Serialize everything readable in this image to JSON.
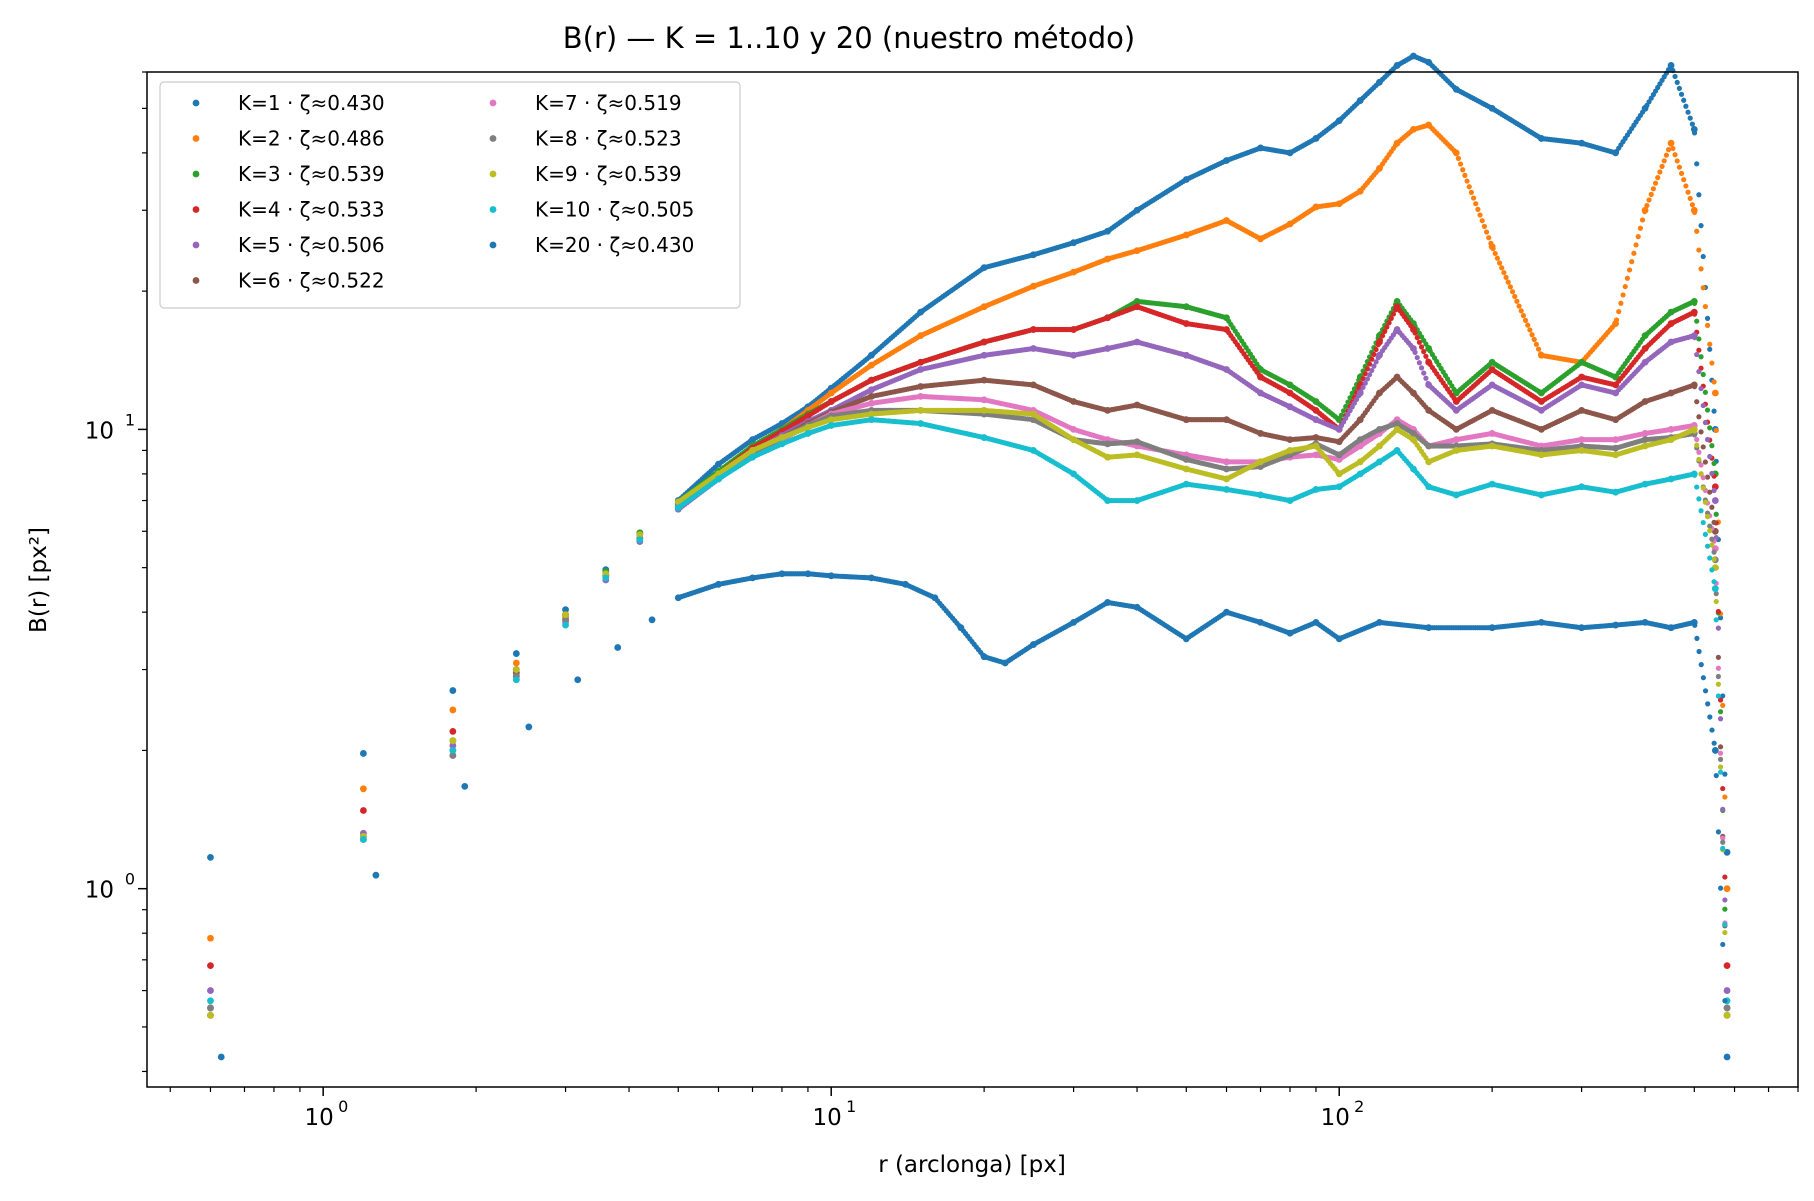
{
  "chart_data": {
    "type": "scatter",
    "title": "B(r) — K = 1..10 y 20 (nuestro método)",
    "xlabel": "r (arclonga) [px]",
    "ylabel": "B(r) [px²]",
    "xscale": "log",
    "yscale": "log",
    "xlim": [
      0.45,
      800
    ],
    "ylim": [
      0.37,
      60
    ],
    "xtick_labels": [
      {
        "value": 1,
        "base": "10",
        "exp": "0"
      },
      {
        "value": 10,
        "base": "10",
        "exp": "1"
      },
      {
        "value": 100,
        "base": "10",
        "exp": "2"
      }
    ],
    "ytick_labels": [
      {
        "value": 1,
        "base": "10",
        "exp": "0"
      },
      {
        "value": 10,
        "base": "10",
        "exp": "1"
      }
    ],
    "grid": false,
    "legend": {
      "placement": "top-left",
      "columns": 2
    },
    "series": [
      {
        "name": "K=1 · ζ≈0.430",
        "color": "#1f77b4",
        "x": [
          0.6,
          1.2,
          1.8,
          2.4,
          3,
          3.6,
          4.2,
          5,
          6,
          7,
          8,
          9,
          10,
          12,
          15,
          20,
          25,
          30,
          35,
          40,
          50,
          60,
          70,
          80,
          90,
          100,
          110,
          120,
          130,
          140,
          150,
          170,
          200,
          250,
          300,
          350,
          400,
          450,
          500,
          550,
          580
        ],
        "values": [
          1.17,
          1.97,
          2.7,
          3.25,
          4.05,
          4.95,
          5.95,
          7.0,
          8.4,
          9.5,
          10.3,
          11.2,
          12.3,
          14.5,
          18,
          22.5,
          24,
          25.5,
          27,
          30,
          35,
          38.5,
          41,
          40,
          43,
          47,
          52,
          57,
          62,
          65,
          63,
          55,
          50,
          43,
          42,
          40,
          50,
          62,
          45,
          10,
          1.2
        ]
      },
      {
        "name": "K=2 · ζ≈0.486",
        "color": "#ff7f0e",
        "x": [
          0.6,
          1.2,
          1.8,
          2.4,
          3,
          3.6,
          4.2,
          5,
          6,
          7,
          8,
          9,
          10,
          12,
          15,
          20,
          25,
          30,
          35,
          40,
          50,
          60,
          70,
          80,
          90,
          100,
          110,
          120,
          130,
          140,
          150,
          170,
          200,
          250,
          300,
          350,
          400,
          450,
          500,
          550,
          580
        ],
        "values": [
          0.78,
          1.65,
          2.45,
          3.1,
          3.9,
          4.8,
          5.7,
          6.8,
          8.0,
          9.2,
          10.0,
          11.0,
          12.0,
          13.8,
          16,
          18.5,
          20.5,
          22,
          23.5,
          24.5,
          26.5,
          28.5,
          26,
          28,
          30.5,
          31,
          33,
          37,
          42,
          45,
          46,
          40,
          25,
          14.5,
          14,
          17,
          30,
          42,
          30,
          12,
          1.0
        ]
      },
      {
        "name": "K=3 · ζ≈0.539",
        "color": "#2ca02c",
        "x": [
          0.6,
          1.2,
          1.8,
          2.4,
          3,
          3.6,
          4.2,
          5,
          6,
          7,
          8,
          9,
          10,
          12,
          15,
          20,
          25,
          30,
          35,
          40,
          50,
          60,
          70,
          80,
          90,
          100,
          110,
          120,
          130,
          140,
          150,
          170,
          200,
          250,
          300,
          350,
          400,
          450,
          500,
          550,
          580
        ],
        "values": [
          0.55,
          1.3,
          2.1,
          2.95,
          3.95,
          4.9,
          5.95,
          6.95,
          8.1,
          9.2,
          10.0,
          10.8,
          11.5,
          12.8,
          14,
          15.5,
          16.5,
          16.5,
          17.5,
          19,
          18.5,
          17.5,
          13.5,
          12.5,
          11.5,
          10.5,
          13,
          16,
          19,
          17,
          15,
          12,
          14,
          12,
          14,
          13,
          16,
          18,
          19,
          8,
          0.55
        ]
      },
      {
        "name": "K=4 · ζ≈0.533",
        "color": "#d62728",
        "x": [
          0.6,
          1.2,
          1.8,
          2.4,
          3,
          3.6,
          4.2,
          5,
          6,
          7,
          8,
          9,
          10,
          12,
          15,
          20,
          25,
          30,
          35,
          40,
          50,
          60,
          70,
          80,
          90,
          100,
          110,
          120,
          130,
          140,
          150,
          170,
          200,
          250,
          300,
          350,
          400,
          450,
          500,
          550,
          580
        ],
        "values": [
          0.68,
          1.48,
          2.2,
          3.0,
          3.85,
          4.8,
          5.8,
          6.85,
          8.0,
          9.1,
          9.9,
          10.7,
          11.5,
          12.8,
          14,
          15.5,
          16.5,
          16.5,
          17.5,
          18.5,
          17,
          16.5,
          13,
          12,
          11,
          10,
          12.5,
          15.5,
          18.5,
          16.5,
          14,
          11.5,
          13.5,
          11.5,
          13,
          12.5,
          15,
          17,
          18,
          7.5,
          0.68
        ]
      },
      {
        "name": "K=5 · ζ≈0.506",
        "color": "#9467bd",
        "x": [
          0.6,
          1.2,
          1.8,
          2.4,
          3,
          3.6,
          4.2,
          5,
          6,
          7,
          8,
          9,
          10,
          12,
          15,
          20,
          25,
          30,
          35,
          40,
          50,
          60,
          70,
          80,
          90,
          100,
          110,
          120,
          130,
          140,
          150,
          170,
          200,
          250,
          300,
          350,
          400,
          450,
          500,
          550,
          580
        ],
        "values": [
          0.6,
          1.32,
          2.05,
          2.9,
          3.8,
          4.7,
          5.7,
          6.7,
          7.8,
          8.9,
          9.7,
          10.4,
          11.0,
          12.2,
          13.5,
          14.5,
          15,
          14.5,
          15,
          15.5,
          14.5,
          13.5,
          12,
          11.2,
          10.5,
          10,
          12,
          14.5,
          16.5,
          15,
          12.5,
          11,
          12.5,
          11,
          12.5,
          12,
          14,
          15.5,
          16,
          7,
          0.6
        ]
      },
      {
        "name": "K=6 · ζ≈0.522",
        "color": "#8c564b",
        "x": [
          0.6,
          1.2,
          1.8,
          2.4,
          3,
          3.6,
          4.2,
          5,
          6,
          7,
          8,
          9,
          10,
          12,
          15,
          20,
          25,
          30,
          35,
          40,
          50,
          60,
          70,
          80,
          90,
          100,
          110,
          120,
          130,
          140,
          150,
          170,
          200,
          250,
          300,
          350,
          400,
          450,
          500,
          550,
          580
        ],
        "values": [
          0.53,
          1.28,
          2.0,
          2.95,
          3.95,
          4.85,
          5.9,
          6.9,
          8.0,
          8.95,
          9.6,
          10.3,
          10.9,
          11.8,
          12.4,
          12.8,
          12.5,
          11.5,
          11,
          11.3,
          10.5,
          10.5,
          9.8,
          9.5,
          9.6,
          9.4,
          10.5,
          12,
          13,
          12,
          11,
          10,
          11,
          10,
          11,
          10.5,
          11.5,
          12,
          12.5,
          6,
          0.53
        ]
      },
      {
        "name": "K=7 · ζ≈0.519",
        "color": "#e377c2",
        "x": [
          0.6,
          1.2,
          1.8,
          2.4,
          3,
          3.6,
          4.2,
          5,
          6,
          7,
          8,
          9,
          10,
          12,
          15,
          20,
          25,
          30,
          35,
          40,
          50,
          60,
          70,
          80,
          90,
          100,
          110,
          120,
          130,
          140,
          150,
          170,
          200,
          250,
          300,
          350,
          400,
          450,
          500,
          550,
          580
        ],
        "values": [
          0.55,
          1.3,
          1.95,
          2.85,
          3.8,
          4.8,
          5.8,
          6.8,
          7.8,
          8.8,
          9.5,
          10.2,
          10.8,
          11.4,
          11.8,
          11.6,
          11,
          10,
          9.5,
          9.2,
          8.8,
          8.5,
          8.5,
          8.7,
          8.8,
          8.6,
          9.2,
          9.8,
          10.5,
          10,
          9.2,
          9.5,
          9.8,
          9.2,
          9.5,
          9.5,
          9.8,
          10,
          10.2,
          5.5,
          0.55
        ]
      },
      {
        "name": "K=8 · ζ≈0.523",
        "color": "#7f7f7f",
        "x": [
          0.6,
          1.2,
          1.8,
          2.4,
          3,
          3.6,
          4.2,
          5,
          6,
          7,
          8,
          9,
          10,
          12,
          15,
          20,
          25,
          30,
          35,
          40,
          50,
          60,
          70,
          80,
          90,
          100,
          110,
          120,
          130,
          140,
          150,
          170,
          200,
          250,
          300,
          350,
          400,
          450,
          500,
          550,
          580
        ],
        "values": [
          0.55,
          1.3,
          1.95,
          2.9,
          3.85,
          4.8,
          5.8,
          6.8,
          7.8,
          8.8,
          9.6,
          10.2,
          10.7,
          11.0,
          11.0,
          10.8,
          10.5,
          9.5,
          9.3,
          9.4,
          8.6,
          8.2,
          8.3,
          8.8,
          9.3,
          8.8,
          9.5,
          10,
          10.3,
          9.8,
          9.2,
          9.2,
          9.3,
          9.0,
          9.2,
          9.1,
          9.5,
          9.6,
          9.8,
          5.2,
          0.55
        ]
      },
      {
        "name": "K=9 · ζ≈0.539",
        "color": "#bcbd22",
        "x": [
          0.6,
          1.2,
          1.8,
          2.4,
          3,
          3.6,
          4.2,
          5,
          6,
          7,
          8,
          9,
          10,
          12,
          15,
          20,
          25,
          30,
          35,
          40,
          50,
          60,
          70,
          80,
          90,
          100,
          110,
          120,
          130,
          140,
          150,
          170,
          200,
          250,
          300,
          350,
          400,
          450,
          500,
          550,
          580
        ],
        "values": [
          0.53,
          1.3,
          2.1,
          3.0,
          3.95,
          4.85,
          5.9,
          6.95,
          8.0,
          9.0,
          9.6,
          10.1,
          10.5,
          10.8,
          11,
          11,
          10.8,
          9.5,
          8.7,
          8.8,
          8.2,
          7.8,
          8.5,
          9.0,
          9.2,
          8.0,
          8.5,
          9.2,
          10,
          9.5,
          8.5,
          9.0,
          9.2,
          8.8,
          9.0,
          8.8,
          9.2,
          9.5,
          10,
          5,
          0.53
        ]
      },
      {
        "name": "K=10 · ζ≈0.505",
        "color": "#17becf",
        "x": [
          0.6,
          1.2,
          1.8,
          2.4,
          3,
          3.6,
          4.2,
          5,
          6,
          7,
          8,
          9,
          10,
          12,
          15,
          20,
          25,
          30,
          35,
          40,
          50,
          60,
          70,
          80,
          90,
          100,
          110,
          120,
          130,
          140,
          150,
          170,
          200,
          250,
          300,
          350,
          400,
          450,
          500,
          550,
          580
        ],
        "values": [
          0.57,
          1.28,
          2.0,
          2.85,
          3.75,
          4.75,
          5.75,
          6.75,
          7.8,
          8.7,
          9.3,
          9.8,
          10.2,
          10.5,
          10.3,
          9.6,
          9.0,
          8.0,
          7.0,
          7.0,
          7.6,
          7.4,
          7.2,
          7.0,
          7.4,
          7.5,
          8.0,
          8.5,
          9.0,
          8.2,
          7.5,
          7.2,
          7.6,
          7.2,
          7.5,
          7.3,
          7.6,
          7.8,
          8.0,
          4.5,
          0.57
        ]
      },
      {
        "name": "K=20 · ζ≈0.430",
        "color": "#1f77b4",
        "x": [
          0.63,
          1.27,
          1.9,
          2.54,
          3.17,
          3.8,
          4.44,
          5,
          6,
          7,
          8,
          9,
          10,
          12,
          14,
          16,
          18,
          20,
          22,
          25,
          30,
          35,
          40,
          50,
          60,
          70,
          80,
          90,
          100,
          120,
          150,
          200,
          250,
          300,
          350,
          400,
          450,
          500,
          550,
          580
        ],
        "values": [
          0.43,
          1.07,
          1.67,
          2.25,
          2.85,
          3.35,
          3.85,
          4.3,
          4.6,
          4.75,
          4.85,
          4.85,
          4.8,
          4.75,
          4.6,
          4.3,
          3.7,
          3.2,
          3.1,
          3.4,
          3.8,
          4.2,
          4.1,
          3.5,
          4.0,
          3.8,
          3.6,
          3.8,
          3.5,
          3.8,
          3.7,
          3.7,
          3.8,
          3.7,
          3.75,
          3.8,
          3.7,
          3.8,
          2,
          0.43
        ]
      }
    ]
  }
}
